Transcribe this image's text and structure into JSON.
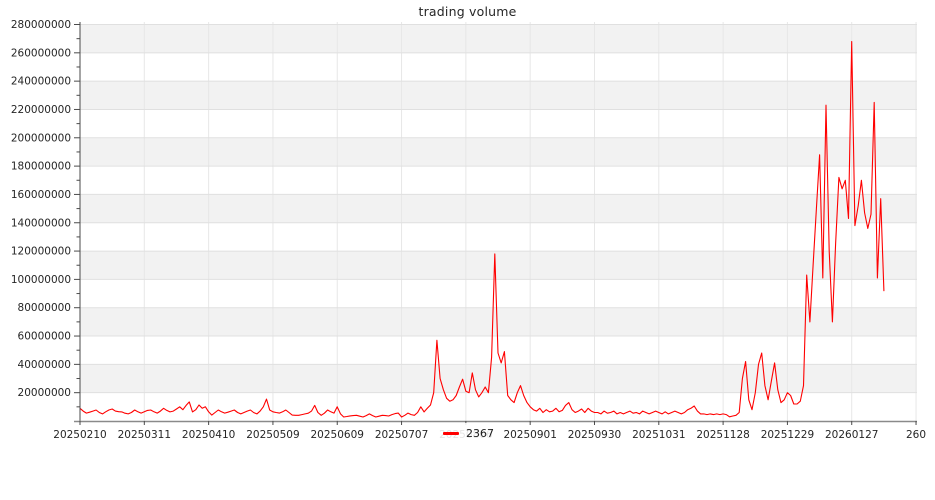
{
  "chart_data": {
    "type": "line",
    "title": "trading volume",
    "xlabel": "",
    "ylabel": "",
    "grid": {
      "horizontal_step": 20000000,
      "alternating_bands": true,
      "vertical_gridlines_at_ticks": true
    },
    "legend_position": "bottom-center",
    "xlim": [
      0,
      260.3
    ],
    "ylim": [
      0,
      282000000
    ],
    "y_ticks": [
      20000000,
      40000000,
      60000000,
      80000000,
      100000000,
      120000000,
      140000000,
      160000000,
      180000000,
      200000000,
      220000000,
      240000000,
      260000000,
      280000000
    ],
    "y_tick_labels": [
      "20000000",
      "40000000",
      "60000000",
      "80000000",
      "100000000",
      "120000000",
      "140000000",
      "160000000",
      "180000000",
      "200000000",
      "220000000",
      "240000000",
      "260000000",
      "280000000"
    ],
    "x_ticks": [
      {
        "index": 0,
        "label": "20250210"
      },
      {
        "index": 20,
        "label": "20250311"
      },
      {
        "index": 40,
        "label": "20250410"
      },
      {
        "index": 60,
        "label": "20250509"
      },
      {
        "index": 80,
        "label": "20250609"
      },
      {
        "index": 100,
        "label": "20250707"
      },
      {
        "index": 120,
        "label": "20250806"
      },
      {
        "index": 140,
        "label": "20250901"
      },
      {
        "index": 160,
        "label": "20250930"
      },
      {
        "index": 180,
        "label": "20251031"
      },
      {
        "index": 200,
        "label": "20251128"
      },
      {
        "index": 220,
        "label": "20251229"
      },
      {
        "index": 240,
        "label": "20260127"
      },
      {
        "index": 260,
        "label": "260"
      }
    ],
    "series": [
      {
        "name": "2367",
        "color": "#ff0000",
        "values": [
          9000000,
          7000000,
          5600000,
          6200000,
          7000000,
          7800000,
          6000000,
          5000000,
          6500000,
          7800000,
          8500000,
          7000000,
          6600000,
          6400000,
          5500000,
          5000000,
          6000000,
          7800000,
          6500000,
          5600000,
          6500000,
          7500000,
          7800000,
          6500000,
          5600000,
          7000000,
          9000000,
          7500000,
          6400000,
          7000000,
          8500000,
          10000000,
          8000000,
          11000000,
          13500000,
          6400000,
          8000000,
          11300000,
          9000000,
          10000000,
          6500000,
          4200000,
          6000000,
          7800000,
          6500000,
          5600000,
          6200000,
          7000000,
          7800000,
          6000000,
          5000000,
          6000000,
          7000000,
          7800000,
          6000000,
          5000000,
          7000000,
          10000000,
          15500000,
          7800000,
          6500000,
          6000000,
          5600000,
          6500000,
          7800000,
          6000000,
          4200000,
          4000000,
          4000000,
          4500000,
          5000000,
          5500000,
          7000000,
          11000000,
          6000000,
          4000000,
          5500000,
          7800000,
          6500000,
          5600000,
          10000000,
          5000000,
          2800000,
          3200000,
          3600000,
          3800000,
          4000000,
          3400000,
          2800000,
          3800000,
          5000000,
          3800000,
          2800000,
          3400000,
          4000000,
          3800000,
          3500000,
          4500000,
          5200000,
          5600000,
          2800000,
          4000000,
          5600000,
          4500000,
          4000000,
          6000000,
          10000000,
          6400000,
          9000000,
          11300000,
          20000000,
          57000000,
          30000000,
          22000000,
          16000000,
          14000000,
          15000000,
          18000000,
          24000000,
          29500000,
          21000000,
          20000000,
          34000000,
          22000000,
          17000000,
          20000000,
          24000000,
          20000000,
          45000000,
          118000000,
          48000000,
          41000000,
          49000000,
          18000000,
          15000000,
          13000000,
          20000000,
          25000000,
          18000000,
          13000000,
          10000000,
          8000000,
          7000000,
          9000000,
          6000000,
          8000000,
          6500000,
          7000000,
          9000000,
          6500000,
          7500000,
          11000000,
          13000000,
          8000000,
          6000000,
          7000000,
          8500000,
          6000000,
          9000000,
          7000000,
          6000000,
          6000000,
          5000000,
          7000000,
          5500000,
          6000000,
          7000000,
          5000000,
          6000000,
          5000000,
          6000000,
          7000000,
          5500000,
          6000000,
          5000000,
          7000000,
          6000000,
          5000000,
          6000000,
          7000000,
          6000000,
          5000000,
          6500000,
          5000000,
          6000000,
          7000000,
          6000000,
          5000000,
          6000000,
          8000000,
          9000000,
          10600000,
          7000000,
          5000000,
          5000000,
          4500000,
          5000000,
          4500000,
          5000000,
          4500000,
          5000000,
          4500000,
          3000000,
          3500000,
          4000000,
          6000000,
          30000000,
          42000000,
          15000000,
          8000000,
          20000000,
          40000000,
          48000000,
          25000000,
          15000000,
          28000000,
          41000000,
          22000000,
          13000000,
          15000000,
          20000000,
          18000000,
          12000000,
          12000000,
          14000000,
          25000000,
          103000000,
          70000000,
          110000000,
          150000000,
          188000000,
          101000000,
          223000000,
          120000000,
          70000000,
          125000000,
          172000000,
          164000000,
          170000000,
          143000000,
          268000000,
          138000000,
          152000000,
          170000000,
          147000000,
          136000000,
          146000000,
          225000000,
          101000000,
          157000000,
          92000000
        ]
      }
    ]
  },
  "legend": {
    "series_label": "2367"
  },
  "style_colors": {
    "line": "#ff0000",
    "band_gray": "#f2f2f2",
    "h_gridline": "#e0e0e0",
    "v_gridline": "#e7e7e7",
    "left_spine": "#4a4a4a",
    "bottom_spine": "#8a8a8a",
    "tick_text": "#262626"
  }
}
